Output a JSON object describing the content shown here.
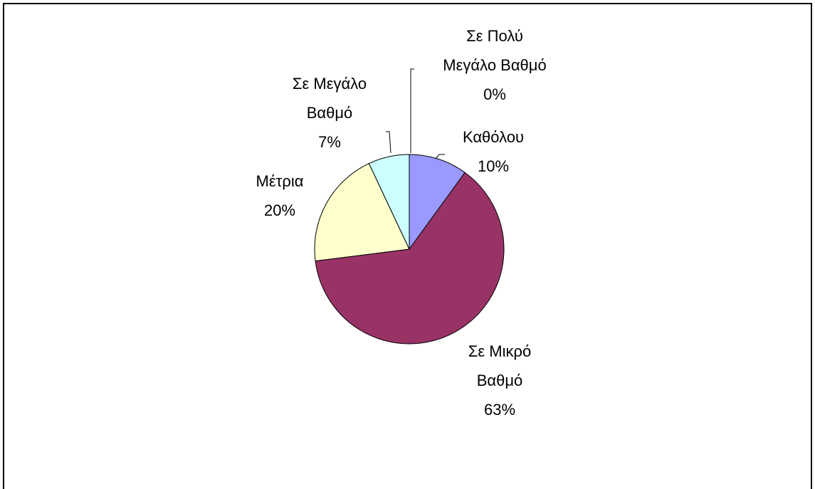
{
  "chart_data": {
    "type": "pie",
    "categories": [
      "Καθόλου",
      "Σε Μικρό Βαθμό",
      "Μέτρια",
      "Σε Μεγάλο Βαθμό",
      "Σε Πολύ Μεγάλο Βαθμό"
    ],
    "values": [
      10,
      63,
      20,
      7,
      0
    ],
    "value_labels": [
      "10%",
      "63%",
      "20%",
      "7%",
      "0%"
    ],
    "colors": [
      "#9999ff",
      "#993366",
      "#ffffcc",
      "#ccffff",
      "#660066"
    ]
  }
}
